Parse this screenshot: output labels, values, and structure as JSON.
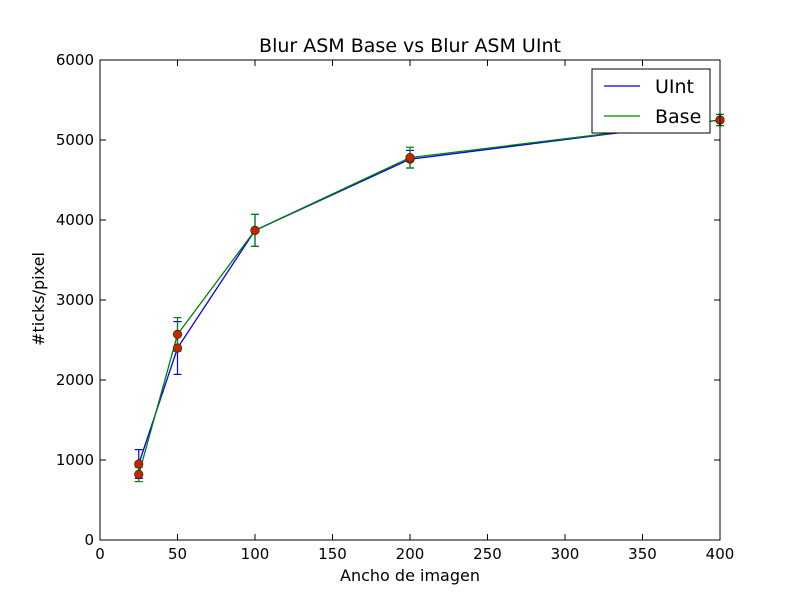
{
  "chart_data": {
    "type": "line",
    "title": "Blur ASM Base vs Blur ASM UInt",
    "xlabel": "Ancho de imagen",
    "ylabel": "#ticks/pixel",
    "xlim": [
      0,
      400
    ],
    "ylim": [
      0,
      6000
    ],
    "xticks": [
      "0",
      "50",
      "100",
      "150",
      "200",
      "250",
      "300",
      "350",
      "400"
    ],
    "yticks": [
      "0",
      "1000",
      "2000",
      "3000",
      "4000",
      "5000",
      "6000"
    ],
    "grid": false,
    "legend_position": "top-right",
    "series": [
      {
        "name": "UInt",
        "color": "#0000ff",
        "x": [
          25,
          50,
          100,
          200,
          400
        ],
        "y": [
          950,
          2400,
          3870,
          4760,
          5250
        ],
        "err": [
          180,
          330,
          200,
          110,
          70
        ]
      },
      {
        "name": "Base",
        "color": "#008000",
        "x": [
          25,
          50,
          100,
          200,
          400
        ],
        "y": [
          820,
          2570,
          3870,
          4780,
          5250
        ],
        "err": [
          90,
          210,
          200,
          130,
          70
        ]
      }
    ],
    "marker_color": "#cc2200"
  }
}
